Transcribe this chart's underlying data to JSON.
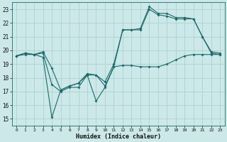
{
  "xlabel": "Humidex (Indice chaleur)",
  "xlim": [
    -0.5,
    23.5
  ],
  "ylim": [
    14.5,
    23.5
  ],
  "yticks": [
    15,
    16,
    17,
    18,
    19,
    20,
    21,
    22,
    23
  ],
  "xticks": [
    0,
    1,
    2,
    3,
    4,
    5,
    6,
    7,
    8,
    9,
    10,
    11,
    12,
    13,
    14,
    15,
    16,
    17,
    18,
    19,
    20,
    21,
    22,
    23
  ],
  "bg_color": "#cce8e8",
  "grid_color": "#a8cece",
  "line_color": "#1a6b6b",
  "line1_x": [
    0,
    1,
    2,
    3,
    4,
    5,
    6,
    7,
    8,
    9,
    10,
    11,
    12,
    13,
    14,
    15,
    16,
    17,
    18,
    19,
    20,
    21,
    22,
    23
  ],
  "line1_y": [
    19.6,
    19.8,
    19.7,
    19.8,
    17.5,
    17.0,
    17.3,
    17.3,
    18.2,
    16.3,
    17.3,
    18.8,
    18.9,
    18.9,
    18.8,
    18.8,
    18.8,
    19.0,
    19.3,
    19.6,
    19.7,
    19.7,
    19.7,
    19.7
  ],
  "line2_x": [
    0,
    1,
    2,
    3,
    4,
    5,
    6,
    7,
    8,
    9,
    10,
    11,
    12,
    13,
    14,
    15,
    16,
    17,
    18,
    19,
    20,
    21,
    22,
    23
  ],
  "line2_y": [
    19.6,
    19.7,
    19.7,
    19.5,
    15.1,
    17.1,
    17.4,
    17.6,
    18.2,
    18.2,
    17.4,
    18.8,
    21.5,
    21.5,
    21.5,
    23.0,
    22.6,
    22.5,
    22.3,
    22.3,
    22.3,
    21.0,
    19.8,
    19.7
  ],
  "line3_x": [
    0,
    1,
    2,
    3,
    4,
    5,
    6,
    7,
    8,
    9,
    10,
    11,
    12,
    13,
    14,
    15,
    16,
    17,
    18,
    19,
    20,
    21,
    22,
    23
  ],
  "line3_y": [
    19.6,
    19.8,
    19.7,
    19.9,
    18.7,
    17.1,
    17.4,
    17.6,
    18.3,
    18.2,
    17.7,
    19.0,
    21.5,
    21.5,
    21.6,
    23.2,
    22.7,
    22.7,
    22.4,
    22.4,
    22.3,
    21.0,
    19.9,
    19.8
  ]
}
